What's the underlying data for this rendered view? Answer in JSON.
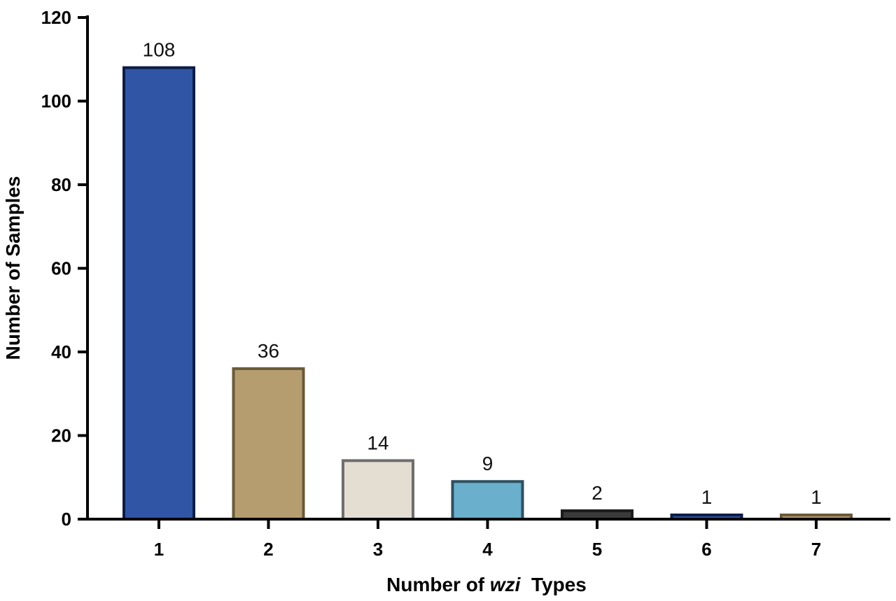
{
  "chart_data": {
    "type": "bar",
    "categories": [
      "1",
      "2",
      "3",
      "4",
      "5",
      "6",
      "7"
    ],
    "values": [
      108,
      36,
      14,
      9,
      2,
      1,
      1
    ],
    "data_labels": [
      "108",
      "36",
      "14",
      "9",
      "2",
      "1",
      "1"
    ],
    "bar_fill_colors": [
      "#2f55a4",
      "#b59d70",
      "#e4ddd2",
      "#6aafcc",
      "#3a3a3a",
      "#2f55a4",
      "#b59d70"
    ],
    "bar_edge_colors": [
      "#0e1d45",
      "#6b5a3a",
      "#6e6e6e",
      "#2f5060",
      "#1c1c1c",
      "#0e1d45",
      "#6b5a3a"
    ],
    "xlabel_prefix": "Number of ",
    "xlabel_italic": "wzi",
    "xlabel_suffix": "  Types",
    "ylabel": "Number of Samples",
    "ylim": [
      0,
      120
    ],
    "yticks": [
      "0",
      "20",
      "40",
      "60",
      "80",
      "100",
      "120"
    ],
    "ytick_values": [
      0,
      20,
      40,
      60,
      80,
      100,
      120
    ],
    "grid": false,
    "legend": "none"
  }
}
